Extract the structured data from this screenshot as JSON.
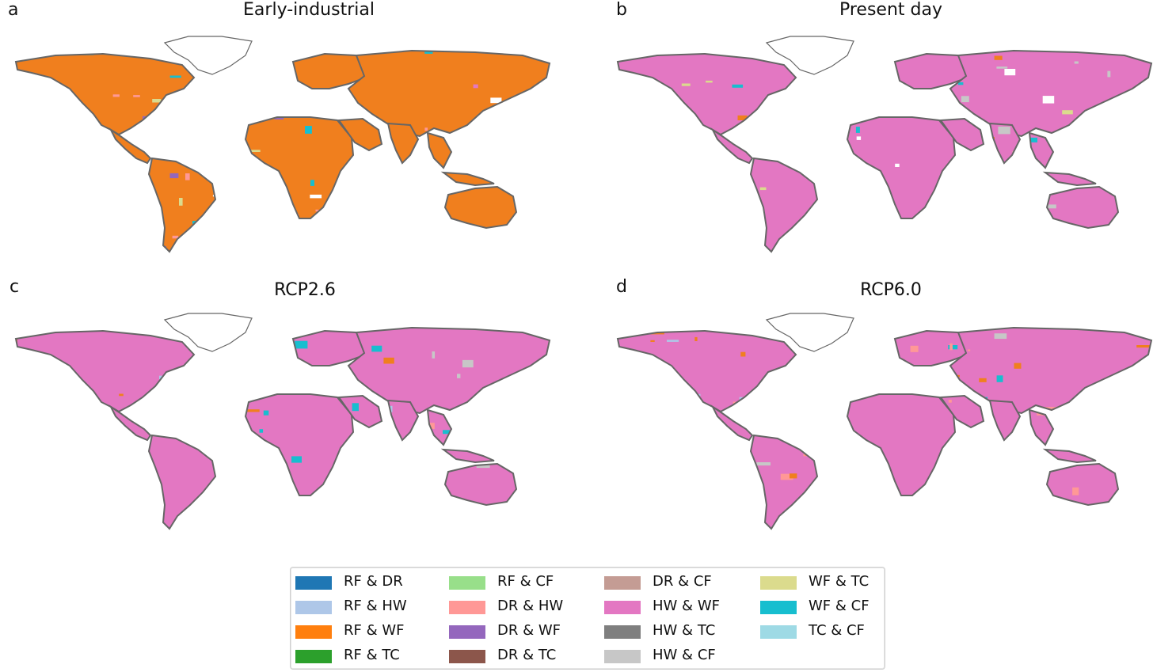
{
  "panels": [
    {
      "letter": "a",
      "title": "Early-industrial",
      "base": "#f07f1e",
      "colors": [
        "#17becf",
        "#9467bd",
        "#e377c2",
        "#dbdb8d",
        "#ff9896",
        "#ffffff"
      ],
      "seed": 11
    },
    {
      "letter": "b",
      "title": "Present day",
      "base": "#e377c2",
      "colors": [
        "#17becf",
        "#c7c7c7",
        "#ff9896",
        "#dbdb8d",
        "#f07f1e",
        "#ffffff"
      ],
      "seed": 23
    },
    {
      "letter": "c",
      "title": "RCP2.6",
      "base": "#e377c2",
      "colors": [
        "#ff9896",
        "#f07f1e",
        "#c7c7c7",
        "#aec7e8",
        "#17becf"
      ],
      "seed": 37
    },
    {
      "letter": "d",
      "title": "RCP6.0",
      "base": "#e377c2",
      "colors": [
        "#ff9896",
        "#aec7e8",
        "#c7c7c7",
        "#f07f1e",
        "#17becf"
      ],
      "seed": 53
    }
  ],
  "legend": [
    {
      "label": "RF & DR",
      "color": "#1f77b4"
    },
    {
      "label": "RF & HW",
      "color": "#aec7e8"
    },
    {
      "label": "RF & WF",
      "color": "#ff7f0e"
    },
    {
      "label": "RF & TC",
      "color": "#2ca02c"
    },
    {
      "label": "RF & CF",
      "color": "#98df8a"
    },
    {
      "label": "DR & HW",
      "color": "#ff9896"
    },
    {
      "label": "DR & WF",
      "color": "#9467bd"
    },
    {
      "label": "DR & TC",
      "color": "#8c564b"
    },
    {
      "label": "DR & CF",
      "color": "#c49c94"
    },
    {
      "label": "HW & WF",
      "color": "#e377c2"
    },
    {
      "label": "HW & TC",
      "color": "#7f7f7f"
    },
    {
      "label": "HW & CF",
      "color": "#c7c7c7"
    },
    {
      "label": "WF & TC",
      "color": "#dbdb8d"
    },
    {
      "label": "WF & CF",
      "color": "#17becf"
    },
    {
      "label": "TC & CF",
      "color": "#9edae5"
    }
  ]
}
